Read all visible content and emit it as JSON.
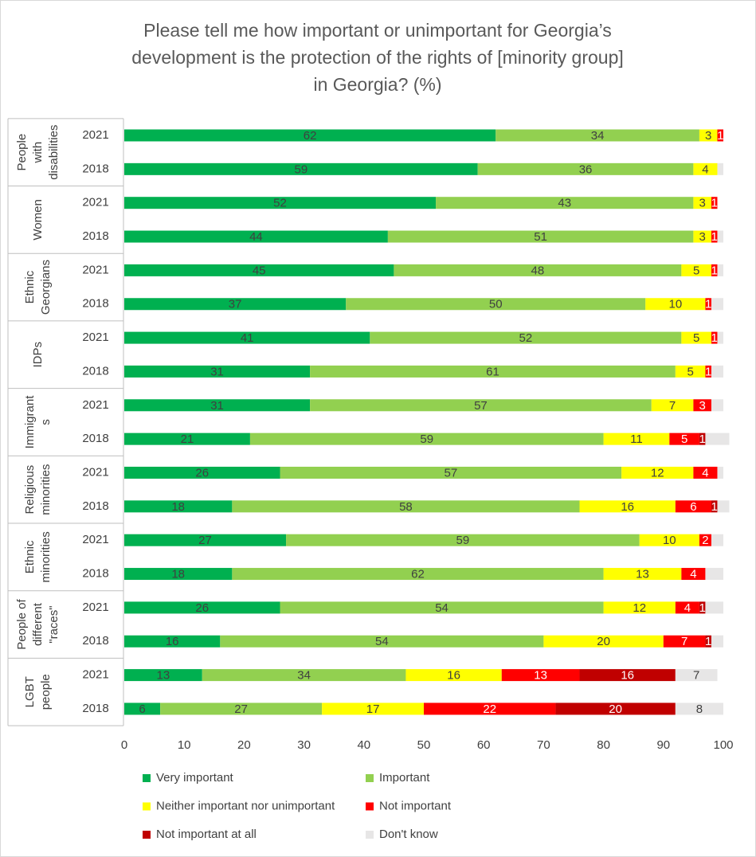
{
  "chart_data": {
    "type": "stacked-bar-horizontal",
    "title": [
      "Please tell me how important or unimportant for Georgia’s",
      "development  is the protection of the rights of [minority group]",
      "in Georgia? (%)"
    ],
    "groups": [
      [
        "People",
        "with",
        "disabilities"
      ],
      [
        "Women"
      ],
      [
        "Ethnic",
        "Georgians"
      ],
      [
        "IDPs"
      ],
      [
        "Immigrant",
        "s"
      ],
      [
        "Religious",
        "minorities"
      ],
      [
        "Ethnic",
        "minorities"
      ],
      [
        "People of",
        "different",
        "\"races\""
      ],
      [
        "LGBT",
        "people"
      ]
    ],
    "categories": [
      "2021",
      "2018",
      "2021",
      "2018",
      "2021",
      "2018",
      "2021",
      "2018",
      "2021",
      "2018",
      "2021",
      "2018",
      "2021",
      "2018",
      "2021",
      "2018",
      "2021",
      "2018"
    ],
    "series": [
      {
        "name": "Very important",
        "color": "#00b050",
        "values": [
          62,
          59,
          52,
          44,
          45,
          37,
          41,
          31,
          31,
          21,
          26,
          18,
          27,
          18,
          26,
          16,
          13,
          6
        ]
      },
      {
        "name": "Important",
        "color": "#92d050",
        "values": [
          34,
          36,
          43,
          51,
          48,
          50,
          52,
          61,
          57,
          59,
          57,
          58,
          59,
          62,
          54,
          54,
          34,
          27
        ]
      },
      {
        "name": "Neither important nor unimportant",
        "color": "#ffff00",
        "values": [
          3,
          4,
          3,
          3,
          5,
          10,
          5,
          5,
          7,
          11,
          12,
          16,
          10,
          13,
          12,
          20,
          16,
          17
        ]
      },
      {
        "name": "Not important",
        "color": "#ff0000",
        "values": [
          1,
          0,
          1,
          1,
          1,
          1,
          1,
          1,
          3,
          5,
          4,
          6,
          2,
          4,
          4,
          7,
          13,
          22
        ]
      },
      {
        "name": "Not important at all",
        "color": "#c00000",
        "values": [
          0,
          0,
          0,
          0,
          0,
          0,
          0,
          0,
          0,
          1,
          0,
          1,
          0,
          0,
          1,
          1,
          16,
          20
        ]
      },
      {
        "name": "Don't know",
        "color": "#e7e6e6",
        "values": [
          0,
          1,
          0,
          1,
          1,
          2,
          1,
          2,
          2,
          4,
          1,
          2,
          2,
          3,
          3,
          2,
          7,
          8
        ]
      }
    ],
    "xlim": [
      0,
      100
    ],
    "xticks": [
      0,
      10,
      20,
      30,
      40,
      50,
      60,
      70,
      80,
      90,
      100
    ]
  }
}
